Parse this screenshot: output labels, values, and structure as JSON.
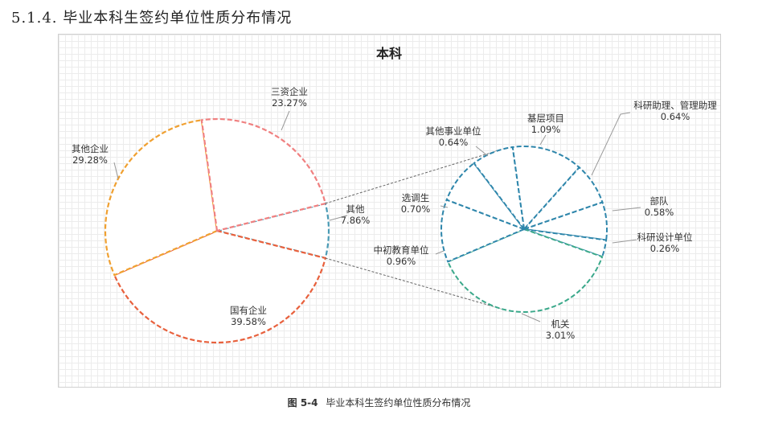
{
  "heading": "5.1.4.   毕业本科生签约单位性质分布情况",
  "caption": {
    "figure_no": "图 5-4",
    "text": "毕业本科生签约单位性质分布情况"
  },
  "chart_data": {
    "type": "pie",
    "subtype": "pie-of-pie",
    "title": "本科",
    "main": [
      {
        "name": "三资企业",
        "value": 23.27,
        "value_label": "23.27%",
        "color": "#f08080"
      },
      {
        "name": "其他",
        "value": 7.86,
        "value_label": "7.86%",
        "color": "#4a9bb5"
      },
      {
        "name": "国有企业",
        "value": 39.58,
        "value_label": "39.58%",
        "color": "#e8603c"
      },
      {
        "name": "其他企业",
        "value": 29.28,
        "value_label": "29.28%",
        "color": "#f0a030"
      }
    ],
    "secondary": [
      {
        "name": "基层项目",
        "value": 1.09,
        "value_label": "1.09%",
        "color": "#2e86ab"
      },
      {
        "name": "科研助理、管理助理",
        "value": 0.64,
        "value_label": "0.64%",
        "color": "#2e86ab"
      },
      {
        "name": "部队",
        "value": 0.58,
        "value_label": "0.58%",
        "color": "#2e86ab"
      },
      {
        "name": "科研设计单位",
        "value": 0.26,
        "value_label": "0.26%",
        "color": "#2e86ab"
      },
      {
        "name": "机关",
        "value": 3.01,
        "value_label": "3.01%",
        "color": "#3aa88a"
      },
      {
        "name": "中初教育单位",
        "value": 0.96,
        "value_label": "0.96%",
        "color": "#2e86ab"
      },
      {
        "name": "选调生",
        "value": 0.7,
        "value_label": "0.70%",
        "color": "#2e86ab"
      },
      {
        "name": "其他事业单位",
        "value": 0.64,
        "value_label": "0.64%",
        "color": "#2e86ab"
      }
    ],
    "legend": "none"
  }
}
